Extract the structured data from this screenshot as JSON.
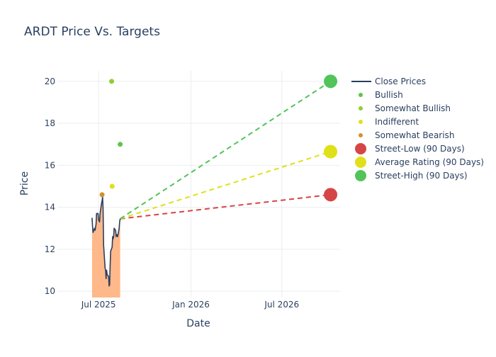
{
  "chart_data": {
    "type": "line",
    "title": "ARDT Price Vs. Targets",
    "xlabel": "Date",
    "ylabel": "Price",
    "x_range": [
      "2025-04-10",
      "2026-10-25"
    ],
    "ylim": [
      9.7,
      20.5
    ],
    "x_ticks": [
      {
        "date": "2025-07-01",
        "label": "Jul 2025"
      },
      {
        "date": "2026-01-01",
        "label": "Jan 2026"
      },
      {
        "date": "2026-07-01",
        "label": "Jul 2026"
      }
    ],
    "y_ticks": [
      10,
      12,
      14,
      16,
      18,
      20
    ],
    "grid": true,
    "legend_position": "right",
    "close_prices": {
      "name": "Close Prices",
      "color": "#2a3f5f",
      "fill_color": "#ffb889",
      "points": [
        [
          "2025-06-18",
          13.5
        ],
        [
          "2025-06-19",
          13.1
        ],
        [
          "2025-06-20",
          12.8
        ],
        [
          "2025-06-23",
          13.0
        ],
        [
          "2025-06-24",
          12.9
        ],
        [
          "2025-06-25",
          13.05
        ],
        [
          "2025-06-26",
          13.2
        ],
        [
          "2025-06-27",
          13.7
        ],
        [
          "2025-06-30",
          13.7
        ],
        [
          "2025-07-01",
          13.4
        ],
        [
          "2025-07-02",
          13.35
        ],
        [
          "2025-07-03",
          13.3
        ],
        [
          "2025-07-04",
          13.7
        ],
        [
          "2025-07-07",
          14.2
        ],
        [
          "2025-07-08",
          14.3
        ],
        [
          "2025-07-09",
          14.5
        ],
        [
          "2025-07-10",
          13.9
        ],
        [
          "2025-07-11",
          12.2
        ],
        [
          "2025-07-14",
          11.1
        ],
        [
          "2025-07-15",
          11.0
        ],
        [
          "2025-07-16",
          10.6
        ],
        [
          "2025-07-17",
          11.0
        ],
        [
          "2025-07-18",
          10.8
        ],
        [
          "2025-07-21",
          10.7
        ],
        [
          "2025-07-22",
          10.25
        ],
        [
          "2025-07-23",
          10.3
        ],
        [
          "2025-07-24",
          11.2
        ],
        [
          "2025-07-25",
          11.9
        ],
        [
          "2025-07-28",
          12.1
        ],
        [
          "2025-07-29",
          12.6
        ],
        [
          "2025-07-30",
          12.5
        ],
        [
          "2025-07-31",
          12.6
        ],
        [
          "2025-08-01",
          13.0
        ],
        [
          "2025-08-04",
          12.9
        ],
        [
          "2025-08-05",
          12.6
        ],
        [
          "2025-08-06",
          12.7
        ],
        [
          "2025-08-07",
          12.65
        ],
        [
          "2025-08-08",
          12.6
        ],
        [
          "2025-08-11",
          13.0
        ],
        [
          "2025-08-12",
          13.3
        ],
        [
          "2025-08-13",
          13.45
        ]
      ]
    },
    "analyst_ratings": [
      {
        "name": "Bullish",
        "color": "#5fc34b",
        "points": [
          [
            "2025-08-13",
            17.0
          ]
        ]
      },
      {
        "name": "Somewhat Bullish",
        "color": "#8ecf2f",
        "points": [
          [
            "2025-07-27",
            20.0
          ]
        ]
      },
      {
        "name": "Indifferent",
        "color": "#e0e01a",
        "points": [
          [
            "2025-07-28",
            15.0
          ]
        ]
      },
      {
        "name": "Somewhat Bearish",
        "color": "#d4912b",
        "points": [
          [
            "2025-07-08",
            14.6
          ]
        ]
      }
    ],
    "targets": {
      "start": [
        "2025-08-13",
        13.45
      ],
      "end_date": "2026-10-06",
      "series": [
        {
          "name": "Street-Low (90 Days)",
          "color": "#d64545",
          "value": 14.6
        },
        {
          "name": "Average Rating (90 Days)",
          "color": "#e0e01a",
          "value": 16.65
        },
        {
          "name": "Street-High (90 Days)",
          "color": "#52c45a",
          "value": 20.0
        }
      ]
    },
    "legend": [
      {
        "name": "Close Prices",
        "kind": "line",
        "color": "#2a3f5f"
      },
      {
        "name": "Bullish",
        "kind": "dot",
        "color": "#5fc34b"
      },
      {
        "name": "Somewhat Bullish",
        "kind": "dot",
        "color": "#8ecf2f"
      },
      {
        "name": "Indifferent",
        "kind": "dot",
        "color": "#e0e01a"
      },
      {
        "name": "Somewhat Bearish",
        "kind": "dot",
        "color": "#d4912b"
      },
      {
        "name": "Street-Low (90 Days)",
        "kind": "bigdot",
        "color": "#d64545"
      },
      {
        "name": "Average Rating (90 Days)",
        "kind": "bigdot",
        "color": "#e0e01a"
      },
      {
        "name": "Street-High (90 Days)",
        "kind": "bigdot",
        "color": "#52c45a"
      }
    ]
  }
}
